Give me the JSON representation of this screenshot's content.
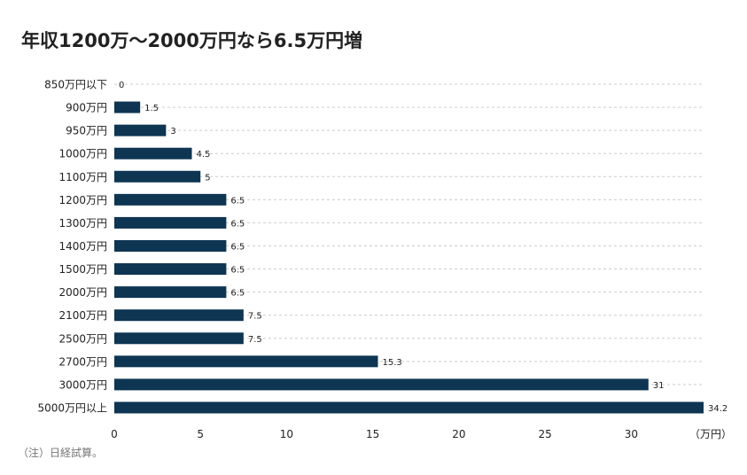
{
  "title": "年収1200万〜2000万円なら6.5万円増",
  "note": "（注）日経試算。",
  "colors": {
    "bar": "#0e3552",
    "grid": "#cccccc",
    "text": "#222222"
  },
  "chart_data": {
    "type": "bar",
    "orientation": "horizontal",
    "title": "年収1200万〜2000万円なら6.5万円増",
    "categories": [
      "850万円以下",
      "900万円",
      "950万円",
      "1000万円",
      "1100万円",
      "1200万円",
      "1300万円",
      "1400万円",
      "1500万円",
      "2000万円",
      "2100万円",
      "2500万円",
      "2700万円",
      "3000万円",
      "5000万円以上"
    ],
    "values": [
      0,
      1.5,
      3,
      4.5,
      5,
      6.5,
      6.5,
      6.5,
      6.5,
      6.5,
      7.5,
      7.5,
      15.3,
      31,
      34.2
    ],
    "value_labels": [
      "0",
      "1.5",
      "3",
      "4.5",
      "5",
      "6.5",
      "6.5",
      "6.5",
      "6.5",
      "6.5",
      "7.5",
      "7.5",
      "15.3",
      "31",
      "34.2"
    ],
    "xticks": [
      0,
      5,
      10,
      15,
      20,
      25,
      30
    ],
    "xunit": "（万円）",
    "xlim": [
      0,
      34.2
    ],
    "grid": "horizontal dashed"
  }
}
